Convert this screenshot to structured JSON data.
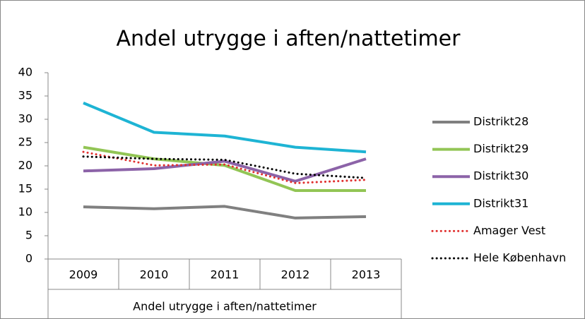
{
  "chart_data": {
    "type": "line",
    "title": "Andel utrygge i aften/nattetimer",
    "xlabel": "Andel utrygge i aften/nattetimer",
    "categories": [
      "2009",
      "2010",
      "2011",
      "2012",
      "2013"
    ],
    "series": [
      {
        "name": "Distrikt28",
        "color": "#808080",
        "dash": false,
        "values": [
          11.2,
          10.8,
          11.3,
          8.8,
          9.1
        ]
      },
      {
        "name": "Distrikt29",
        "color": "#92c555",
        "dash": false,
        "values": [
          24,
          21.5,
          20.1,
          14.7,
          14.7
        ]
      },
      {
        "name": "Distrikt30",
        "color": "#8c63a8",
        "dash": false,
        "values": [
          18.9,
          19.4,
          21,
          16.7,
          21.5
        ]
      },
      {
        "name": "Distrikt31",
        "color": "#1eb4d4",
        "dash": false,
        "values": [
          33.5,
          27.2,
          26.4,
          24,
          23
        ]
      },
      {
        "name": "Amager Vest",
        "color": "#e0302f",
        "dash": true,
        "values": [
          23,
          20.1,
          20.3,
          16.3,
          17
        ]
      },
      {
        "name": "Hele København",
        "color": "#000000",
        "dash": true,
        "values": [
          22,
          21.5,
          21.3,
          18.3,
          17.4
        ]
      }
    ],
    "ylim": [
      0,
      40
    ],
    "yticks": [
      0,
      5,
      10,
      15,
      20,
      25,
      30,
      35,
      40
    ],
    "grid": false,
    "legend": "right"
  }
}
